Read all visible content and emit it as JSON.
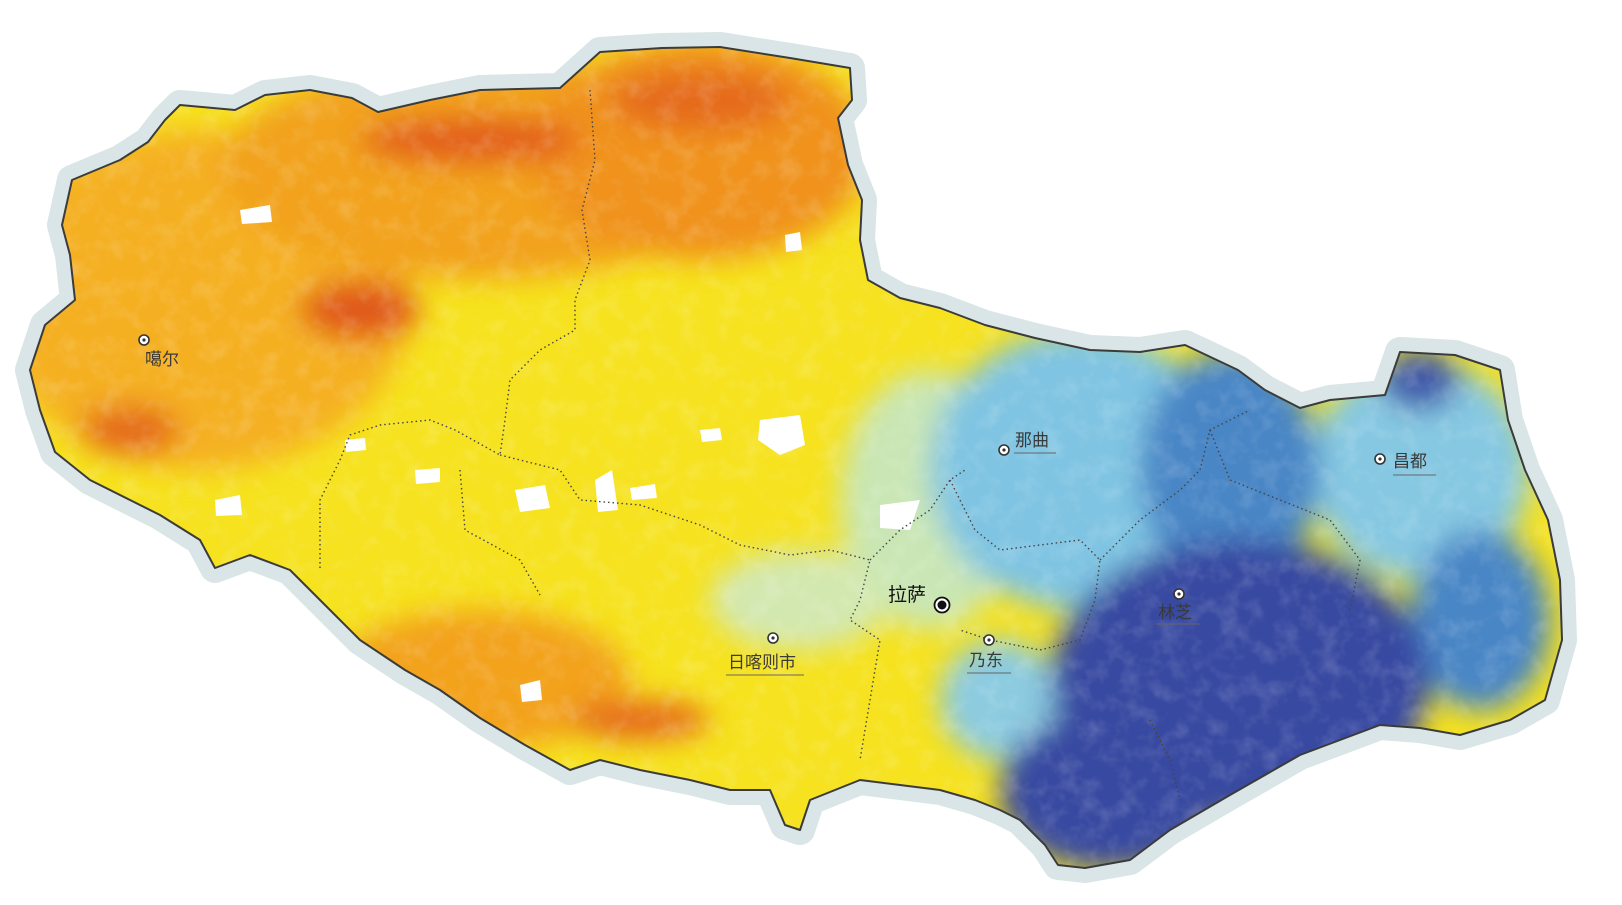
{
  "map": {
    "colors": {
      "halo": "#d9e5e6",
      "outline": "#3b3b3b",
      "boundary": "#444444",
      "dark_orange": "#e0581a",
      "orange": "#f5a418",
      "yellow": "#f6e21e",
      "pale_green": "#c9e6b4",
      "light_blue": "#7fc4e2",
      "mid_blue": "#4a86c6",
      "dark_blue": "#374aa1",
      "no_data": "#ffffff"
    },
    "capital": {
      "name": "拉萨",
      "marker": "capital-dot-icon"
    },
    "cities": [
      {
        "name": "噶尔",
        "marker": "city-circle-icon"
      },
      {
        "name": "那曲",
        "marker": "city-circle-icon"
      },
      {
        "name": "昌都",
        "marker": "city-circle-icon"
      },
      {
        "name": "林芝",
        "marker": "city-circle-icon"
      },
      {
        "name": "乃东",
        "marker": "city-circle-icon"
      },
      {
        "name": "日喀则市",
        "marker": "city-circle-icon"
      }
    ]
  }
}
